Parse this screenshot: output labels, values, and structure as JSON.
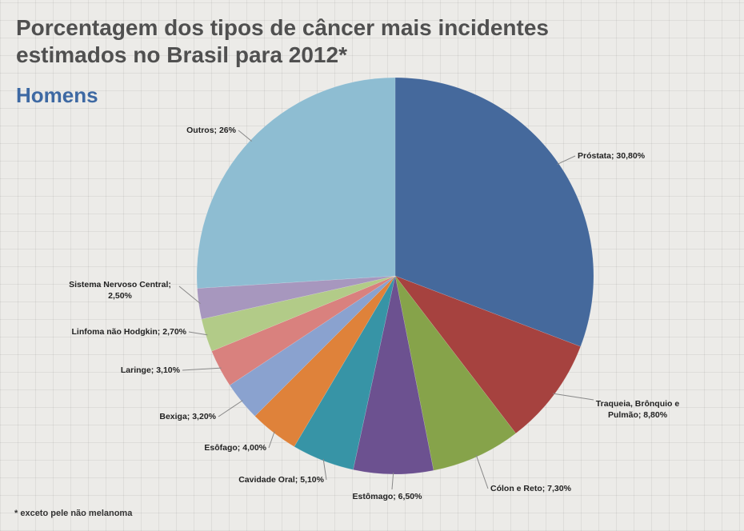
{
  "chart_data": {
    "type": "pie",
    "title": "Porcentagem dos tipos de câncer mais incidentes estimados no Brasil para 2012*",
    "subtitle": "Homens",
    "footnote": "* exceto pele não melanoma",
    "values": [
      30.8,
      8.8,
      7.3,
      6.5,
      5.1,
      4.0,
      3.2,
      3.1,
      2.7,
      2.5,
      26
    ],
    "value_labels": [
      "Próstata; 30,80%",
      "Traqueia, Brônquio e Pulmão; 8,80%",
      "Cólon e Reto; 7,30%",
      "Estômago; 6,50%",
      "Cavidade Oral; 5,10%",
      "Esôfago; 4,00%",
      "Bexiga; 3,20%",
      "Laringe; 3,10%",
      "Linfoma não Hodgkin; 2,70%",
      "Sistema Nervoso Central; 2,50%",
      "Outros; 26%"
    ],
    "colors": [
      "#45699c",
      "#a6423f",
      "#86a34a",
      "#6c5190",
      "#3794a6",
      "#df823a",
      "#8aa2cf",
      "#d9817e",
      "#b2cb88",
      "#a797be",
      "#8ebdd2"
    ]
  }
}
